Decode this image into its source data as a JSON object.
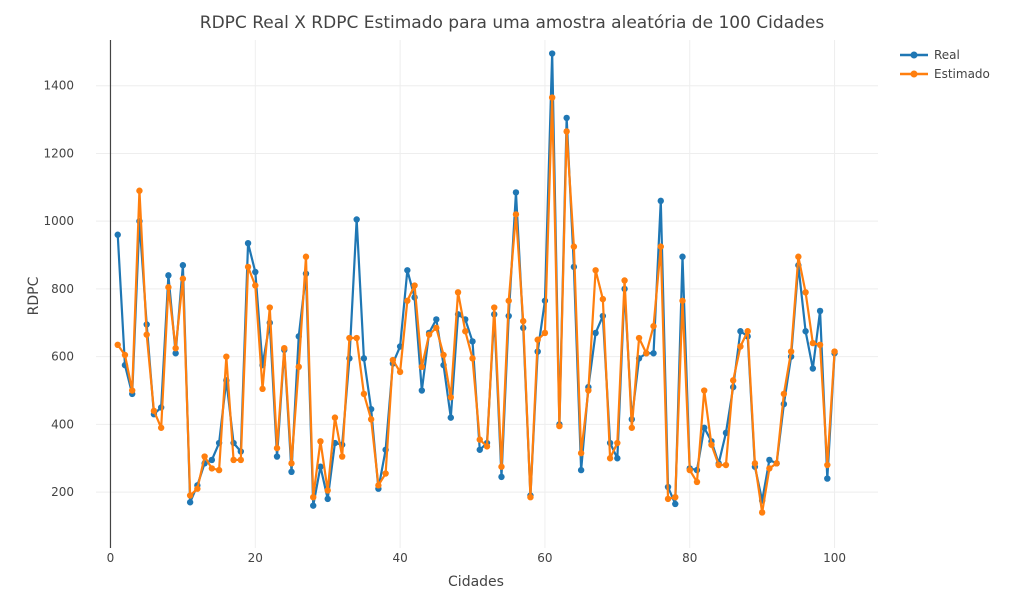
{
  "chart_data": {
    "type": "line",
    "title": "RDPC Real X RDPC Estimado para uma amostra aleatória de 100 Cidades",
    "xlabel": "Cidades",
    "ylabel": "RDPC",
    "xlim": [
      -2,
      106
    ],
    "ylim": [
      35,
      1535
    ],
    "x_ticks": [
      0,
      20,
      40,
      60,
      80,
      100
    ],
    "y_ticks": [
      200,
      400,
      600,
      800,
      1000,
      1200,
      1400
    ],
    "grid": true,
    "legend_position": "top-right",
    "x": [
      1,
      2,
      3,
      4,
      5,
      6,
      7,
      8,
      9,
      10,
      11,
      12,
      13,
      14,
      15,
      16,
      17,
      18,
      19,
      20,
      21,
      22,
      23,
      24,
      25,
      26,
      27,
      28,
      29,
      30,
      31,
      32,
      33,
      34,
      35,
      36,
      37,
      38,
      39,
      40,
      41,
      42,
      43,
      44,
      45,
      46,
      47,
      48,
      49,
      50,
      51,
      52,
      53,
      54,
      55,
      56,
      57,
      58,
      59,
      60,
      61,
      62,
      63,
      64,
      65,
      66,
      67,
      68,
      69,
      70,
      71,
      72,
      73,
      74,
      75,
      76,
      77,
      78,
      79,
      80,
      81,
      82,
      83,
      84,
      85,
      86,
      87,
      88,
      89,
      90,
      91,
      92,
      93,
      94,
      95,
      96,
      97,
      98,
      99,
      100
    ],
    "series": [
      {
        "name": "Real",
        "color": "#1f77b4",
        "values": [
          960,
          575,
          490,
          1000,
          695,
          430,
          450,
          840,
          610,
          870,
          170,
          220,
          285,
          295,
          345,
          530,
          345,
          320,
          935,
          850,
          575,
          700,
          305,
          620,
          260,
          660,
          845,
          160,
          275,
          180,
          345,
          340,
          595,
          1005,
          595,
          445,
          210,
          325,
          580,
          630,
          855,
          775,
          500,
          670,
          710,
          575,
          420,
          725,
          710,
          645,
          325,
          345,
          725,
          245,
          720,
          1085,
          685,
          190,
          615,
          765,
          1495,
          400,
          1305,
          865,
          265,
          510,
          670,
          720,
          345,
          300,
          800,
          415,
          595,
          610,
          610,
          1060,
          215,
          165,
          895,
          270,
          265,
          390,
          350,
          285,
          375,
          510,
          675,
          660,
          275,
          175,
          295,
          285,
          460,
          600,
          870,
          675,
          565,
          735,
          240,
          610
        ]
      },
      {
        "name": "Estimado",
        "color": "#ff7f0e",
        "values": [
          635,
          605,
          500,
          1090,
          665,
          440,
          390,
          805,
          625,
          830,
          190,
          210,
          305,
          270,
          265,
          600,
          295,
          295,
          865,
          810,
          505,
          745,
          330,
          625,
          285,
          570,
          895,
          185,
          350,
          205,
          420,
          305,
          655,
          655,
          490,
          415,
          220,
          255,
          590,
          555,
          765,
          810,
          570,
          665,
          685,
          605,
          480,
          790,
          675,
          595,
          355,
          335,
          745,
          275,
          765,
          1020,
          705,
          185,
          650,
          670,
          1365,
          395,
          1265,
          925,
          315,
          500,
          855,
          770,
          300,
          345,
          825,
          390,
          655,
          610,
          690,
          925,
          180,
          185,
          765,
          265,
          230,
          500,
          340,
          280,
          280,
          530,
          630,
          675,
          285,
          140,
          270,
          285,
          490,
          615,
          895,
          790,
          640,
          635,
          280,
          615
        ]
      }
    ]
  }
}
